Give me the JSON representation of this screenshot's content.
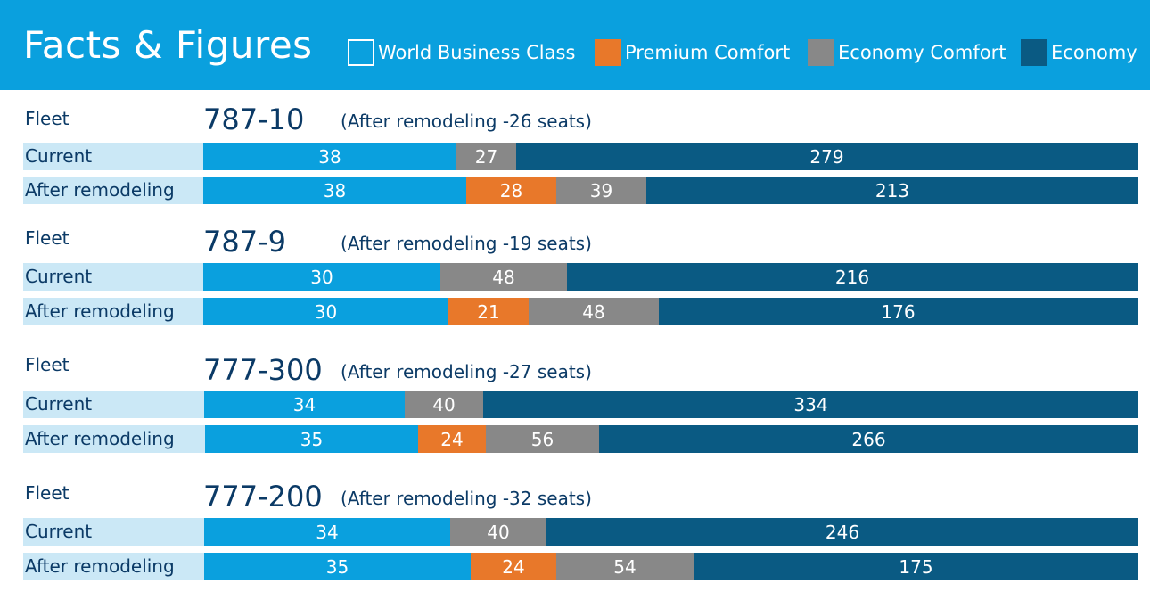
{
  "title": "Facts & Figures",
  "colors": {
    "header": "#0aa0de",
    "world_business_class": "#0aa0de",
    "premium_comfort": "#e8782a",
    "economy_comfort": "#888888",
    "economy": "#0a5a83",
    "row_label_bg": "#cbe8f6",
    "text": "#0b3a66"
  },
  "chart_data": {
    "type": "bar",
    "orientation": "horizontal-stacked",
    "title": "Facts & Figures",
    "legend": [
      "World Business Class",
      "Premium Comfort",
      "Economy Comfort",
      "Economy"
    ],
    "legend_position": "top",
    "groups": [
      {
        "fleet_label": "Fleet",
        "model": "787-10",
        "note": "(After remodeling -26 seats)",
        "rows": [
          {
            "label": "Current",
            "world_business_class": 38,
            "premium_comfort": null,
            "economy_comfort": 27,
            "economy": 279
          },
          {
            "label": "After remodeling",
            "world_business_class": 38,
            "premium_comfort": 28,
            "economy_comfort": 39,
            "economy": 213
          }
        ]
      },
      {
        "fleet_label": "Fleet",
        "model": "787-9",
        "note": "(After remodeling -19 seats)",
        "rows": [
          {
            "label": "Current",
            "world_business_class": 30,
            "premium_comfort": null,
            "economy_comfort": 48,
            "economy": 216
          },
          {
            "label": "After remodeling",
            "world_business_class": 30,
            "premium_comfort": 21,
            "economy_comfort": 48,
            "economy": 176
          }
        ]
      },
      {
        "fleet_label": "Fleet",
        "model": "777-300",
        "note": "(After remodeling -27 seats)",
        "rows": [
          {
            "label": "Current",
            "world_business_class": 34,
            "premium_comfort": null,
            "economy_comfort": 40,
            "economy": 334
          },
          {
            "label": "After remodeling",
            "world_business_class": 35,
            "premium_comfort": 24,
            "economy_comfort": 56,
            "economy": 266
          }
        ]
      },
      {
        "fleet_label": "Fleet",
        "model": "777-200",
        "note": "(After remodeling -32 seats)",
        "rows": [
          {
            "label": "Current",
            "world_business_class": 34,
            "premium_comfort": null,
            "economy_comfort": 40,
            "economy": 246
          },
          {
            "label": "After remodeling",
            "world_business_class": 35,
            "premium_comfort": 24,
            "economy_comfort": 54,
            "economy": 175
          }
        ]
      }
    ]
  }
}
